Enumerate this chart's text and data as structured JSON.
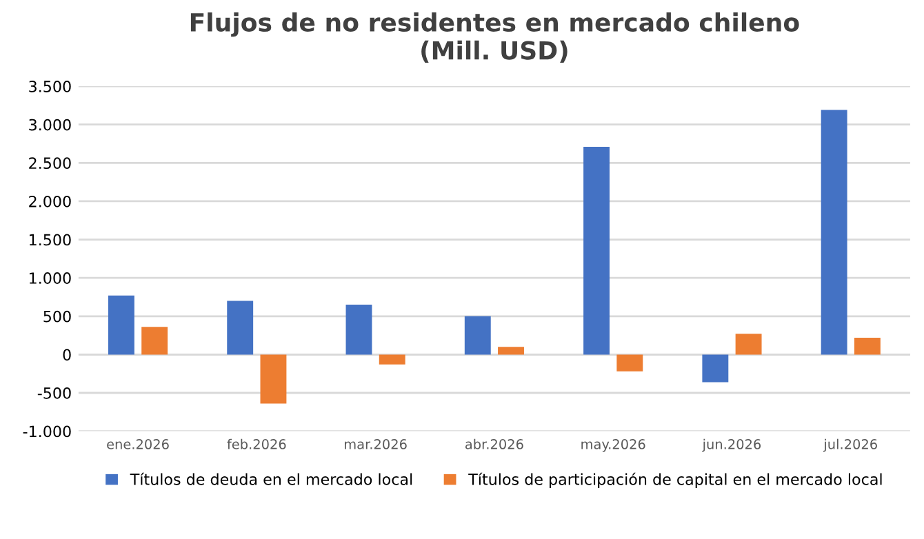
{
  "chart_data": {
    "type": "bar",
    "title": "Flujos de no residentes en mercado chileno\n(Mill. USD)",
    "categories": [
      "ene.2026",
      "feb.2026",
      "mar.2026",
      "abr.2026",
      "may.2026",
      "jun.2026",
      "jul.2026"
    ],
    "series": [
      {
        "name": "Títulos de deuda en el mercado local",
        "color": "#4472c4",
        "values": [
          770,
          700,
          650,
          500,
          2710,
          -360,
          3190
        ]
      },
      {
        "name": "Títulos de participación de capital en el mercado local",
        "color": "#ed7d31",
        "values": [
          360,
          -640,
          -130,
          100,
          -220,
          270,
          220
        ]
      }
    ],
    "ylim": [
      -1000,
      3500
    ],
    "yticks": [
      {
        "value": -1000,
        "label": "-1.000"
      },
      {
        "value": -500,
        "label": "-500"
      },
      0,
      500,
      {
        "value": 1000,
        "label": "1.000"
      },
      {
        "value": 1500,
        "label": "1.500"
      },
      {
        "value": 2000,
        "label": "2.000"
      },
      {
        "value": 2500,
        "label": "2.500"
      },
      {
        "value": 3000,
        "label": "3.000"
      },
      {
        "value": 3500,
        "label": "3.500"
      }
    ],
    "grid": "y",
    "legend": "bottom"
  }
}
